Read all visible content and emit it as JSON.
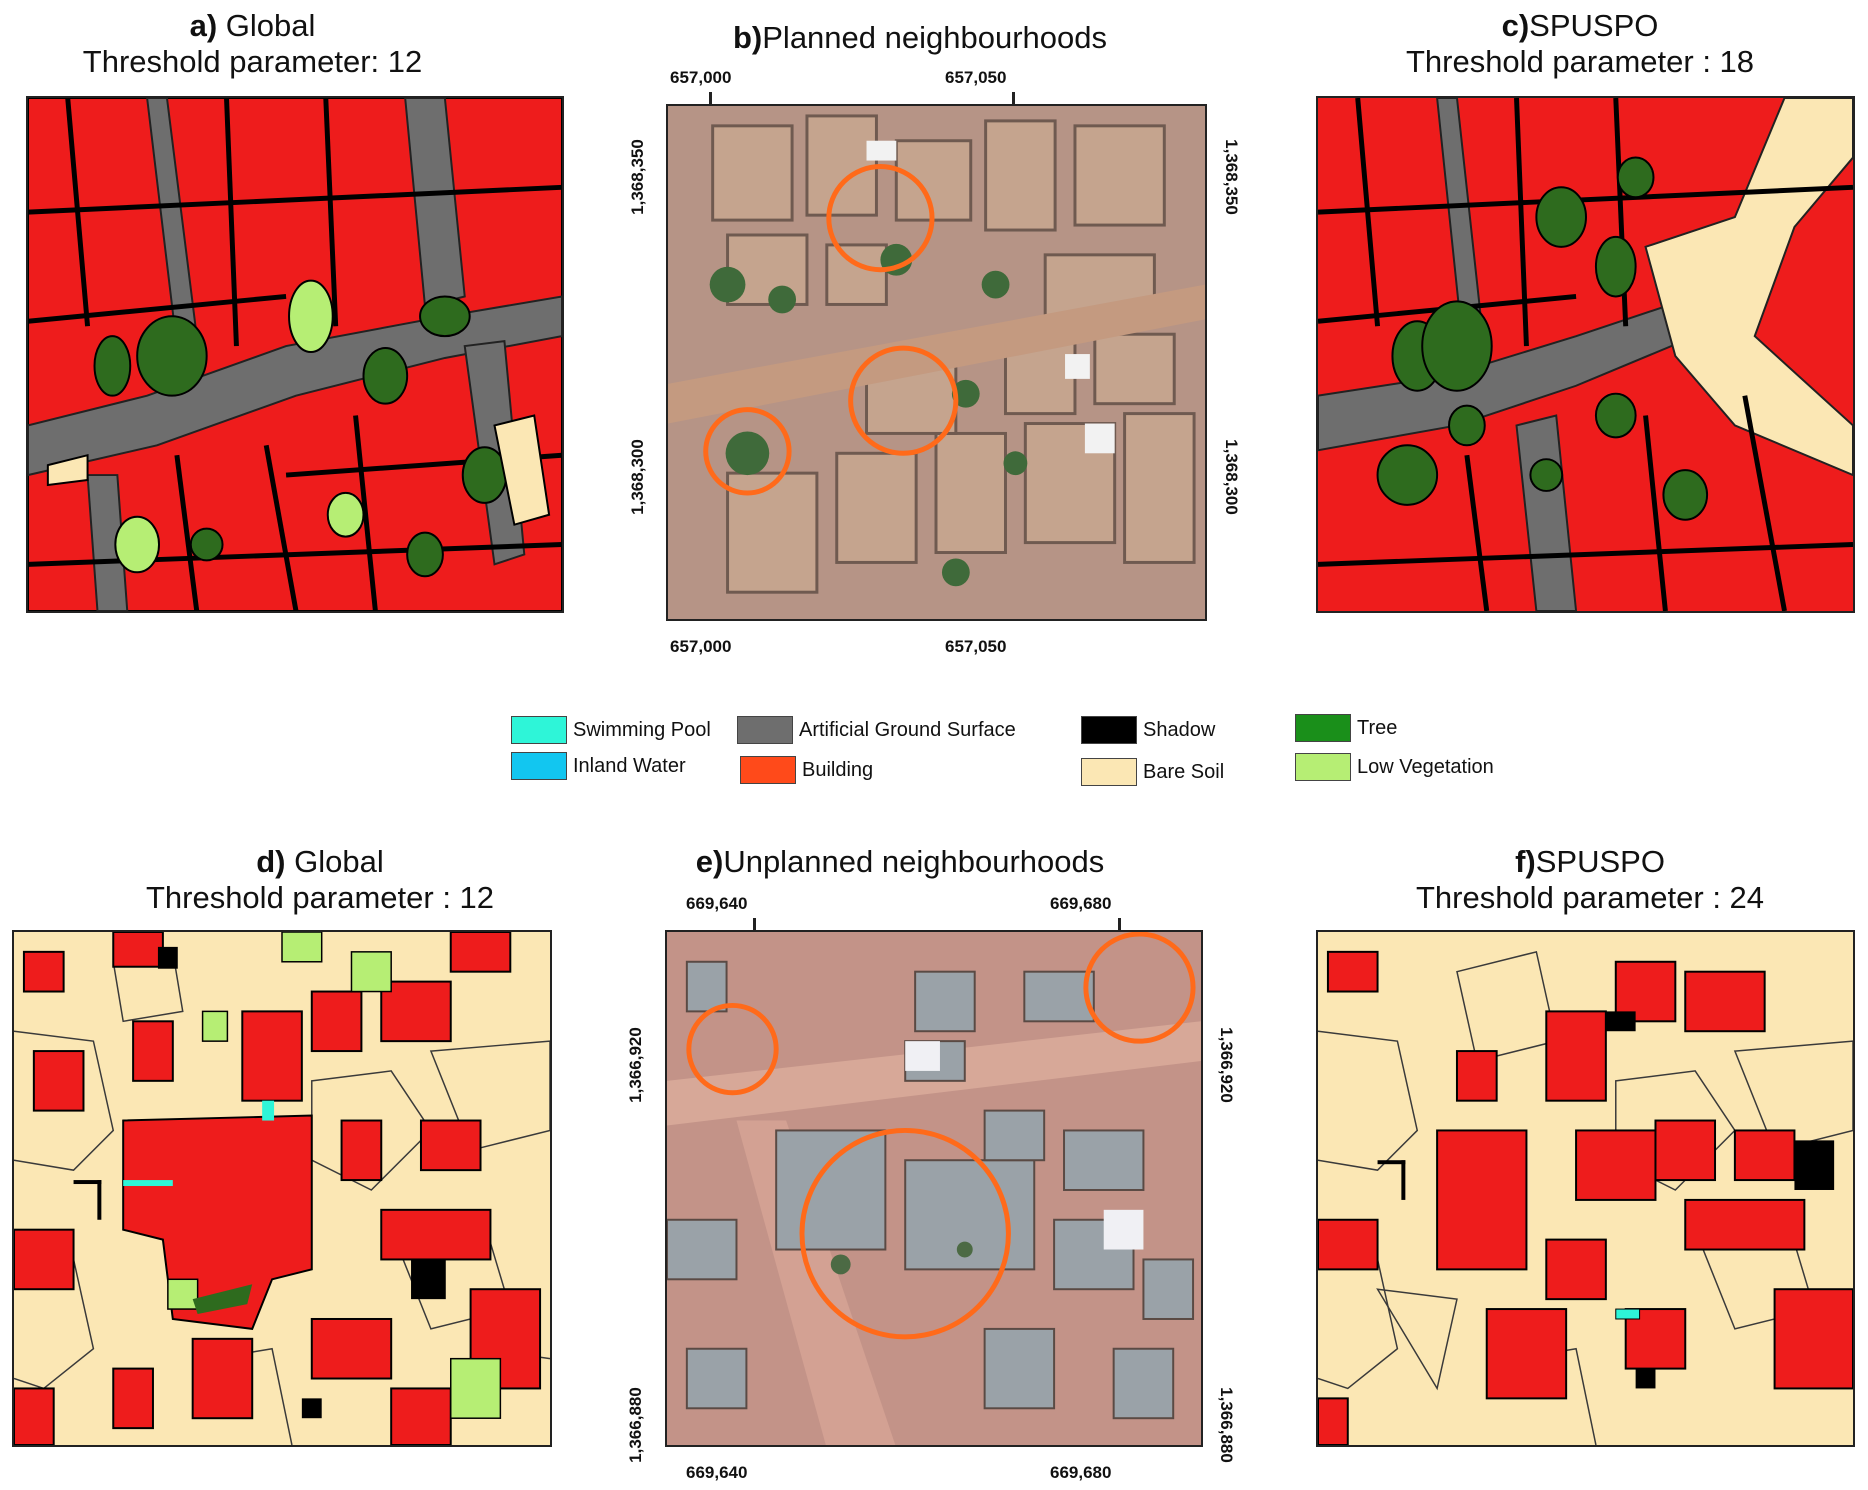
{
  "panels": {
    "a": {
      "letter": "a)",
      "name": "Global",
      "subtitle": "Threshold parameter: 12"
    },
    "b": {
      "letter": "b)",
      "name": "Planned neighbourhoods",
      "top_ticks": [
        "657,000",
        "657,050"
      ],
      "bottom_ticks": [
        "657,000",
        "657,050"
      ],
      "left_ticks": [
        "1,368,350",
        "1,368,300"
      ],
      "right_ticks": [
        "1,368,350",
        "1,368,300"
      ]
    },
    "c": {
      "letter": "c)",
      "name": "SPUSPO",
      "subtitle": "Threshold parameter : 18"
    },
    "d": {
      "letter": "d)",
      "name": "Global",
      "subtitle": "Threshold parameter : 12"
    },
    "e": {
      "letter": "e)",
      "name": "Unplanned neighbourhoods",
      "top_ticks": [
        "669,640",
        "669,680"
      ],
      "bottom_ticks": [
        "669,640",
        "669,680"
      ],
      "left_ticks": [
        "1,366,920",
        "1,366,880"
      ],
      "right_ticks": [
        "1,366,920",
        "1,366,880"
      ]
    },
    "f": {
      "letter": "f)",
      "name": "SPUSPO",
      "subtitle": "Threshold parameter : 24"
    }
  },
  "legend": [
    {
      "label": "Swimming Pool",
      "color": "#2ef5d8"
    },
    {
      "label": "Inland Water",
      "color": "#12c6f0"
    },
    {
      "label": "Artificial Ground Surface",
      "color": "#6e6e6e"
    },
    {
      "label": "Building",
      "color": "#ff4a1a"
    },
    {
      "label": "Shadow",
      "color": "#000000"
    },
    {
      "label": "Bare Soil",
      "color": "#fbe7b4"
    },
    {
      "label": "Tree",
      "color": "#1a8f1a"
    },
    {
      "label": "Low Vegetation",
      "color": "#b6ee74"
    }
  ],
  "map_colors": {
    "building": "#ee1c1c",
    "artificial": "#6e6e6e",
    "shadow": "#000000",
    "bare_soil": "#fbe7b4",
    "tree": "#2e6b1e",
    "low_veg": "#b6ee74",
    "pool": "#2ef5d8",
    "imagery_bg": "#b69486",
    "circle": "#ff6a1a"
  }
}
